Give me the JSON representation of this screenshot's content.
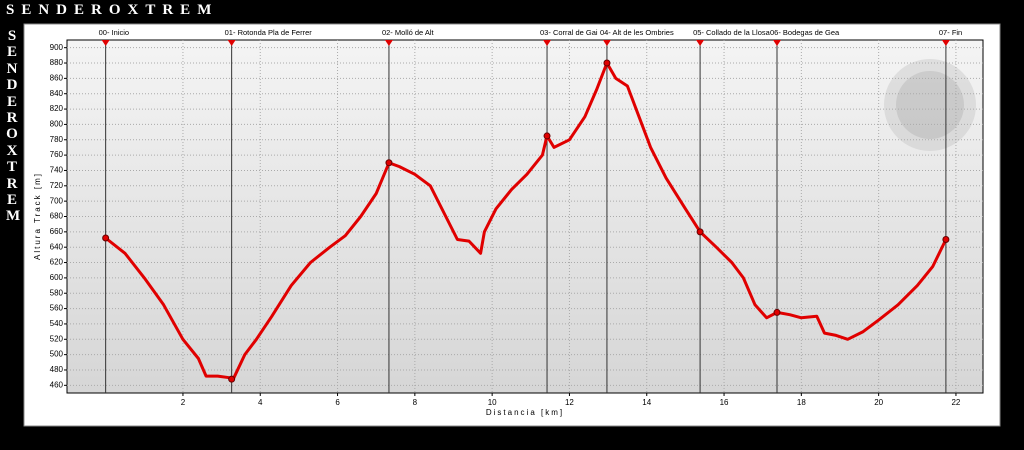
{
  "brand": "SENDEROXTREM",
  "chart_data": {
    "type": "line",
    "xlabel": "Distancia [km]",
    "ylabel": "Altura Track [m]",
    "color": "#e00000",
    "x": [
      0,
      0.5,
      1.0,
      1.5,
      2.0,
      2.4,
      2.6,
      2.9,
      3.2,
      3.3,
      3.6,
      3.9,
      4.3,
      4.8,
      5.3,
      5.8,
      6.2,
      6.6,
      7.0,
      7.33,
      7.6,
      8.0,
      8.4,
      8.8,
      9.1,
      9.4,
      9.7,
      9.8,
      10.1,
      10.5,
      10.9,
      11.3,
      11.42,
      11.6,
      12.0,
      12.4,
      12.7,
      12.97,
      13.2,
      13.5,
      13.8,
      14.1,
      14.5,
      15.0,
      15.38,
      15.8,
      16.2,
      16.5,
      16.8,
      17.1,
      17.37,
      17.7,
      18.0,
      18.4,
      18.6,
      18.9,
      19.2,
      19.6,
      20.0,
      20.5,
      21.0,
      21.4,
      21.74
    ],
    "values": [
      652,
      632,
      600,
      565,
      520,
      495,
      472,
      472,
      470,
      468,
      500,
      520,
      550,
      590,
      620,
      640,
      655,
      680,
      710,
      750,
      745,
      735,
      720,
      680,
      650,
      648,
      632,
      660,
      690,
      715,
      735,
      760,
      785,
      770,
      780,
      810,
      845,
      880,
      860,
      850,
      810,
      770,
      730,
      690,
      660,
      640,
      620,
      600,
      565,
      548,
      555,
      552,
      548,
      550,
      528,
      525,
      520,
      530,
      545,
      565,
      590,
      615,
      650
    ],
    "waypoints": [
      {
        "label": "00- Inicio",
        "x": 0,
        "elevation": 652
      },
      {
        "label": "01- Rotonda Pla de Ferrer",
        "x": 3.26,
        "elevation": 468
      },
      {
        "label": "02- Molló de Alt",
        "x": 7.33,
        "elevation": 750
      },
      {
        "label": "03- Corral de Gai",
        "x": 11.42,
        "elevation": 785
      },
      {
        "label": "04- Alt de les Ombries",
        "x": 12.97,
        "elevation": 880
      },
      {
        "label": "05- Collado de la Llosa",
        "x": 15.38,
        "elevation": 660
      },
      {
        "label": "06- Bodegas de Gea",
        "x": 17.37,
        "elevation": 555
      },
      {
        "label": "07- Fin",
        "x": 21.74,
        "elevation": 650
      }
    ],
    "xlim": [
      -1,
      22.7
    ],
    "xticks": [
      2,
      4,
      6,
      8,
      10,
      12,
      14,
      16,
      18,
      20,
      22
    ],
    "ylim": [
      450,
      910
    ],
    "yticks": [
      460,
      480,
      500,
      520,
      540,
      560,
      580,
      600,
      620,
      640,
      660,
      680,
      700,
      720,
      740,
      760,
      780,
      800,
      820,
      840,
      860,
      880,
      900
    ],
    "grid": true
  }
}
